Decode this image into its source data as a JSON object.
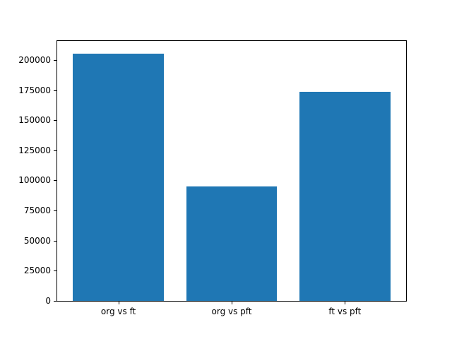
{
  "figure": {
    "background": "#ffffff"
  },
  "chart_data": {
    "type": "bar",
    "title": "",
    "xlabel": "",
    "ylabel": "",
    "categories": [
      "org vs ft",
      "org vs pft",
      "ft vs pft"
    ],
    "values": [
      205500,
      95300,
      173500
    ],
    "bar_color": "#1f77b4",
    "axis_color": "#000000",
    "text_color": "#000000",
    "ylim": [
      0,
      215800
    ],
    "yticks": [
      0,
      25000,
      50000,
      75000,
      100000,
      125000,
      150000,
      175000,
      200000
    ],
    "ytick_labels": [
      "0",
      "25000",
      "50000",
      "75000",
      "100000",
      "125000",
      "150000",
      "175000",
      "200000"
    ],
    "bar_width_fraction": 0.8,
    "grid": false,
    "legend": false
  }
}
